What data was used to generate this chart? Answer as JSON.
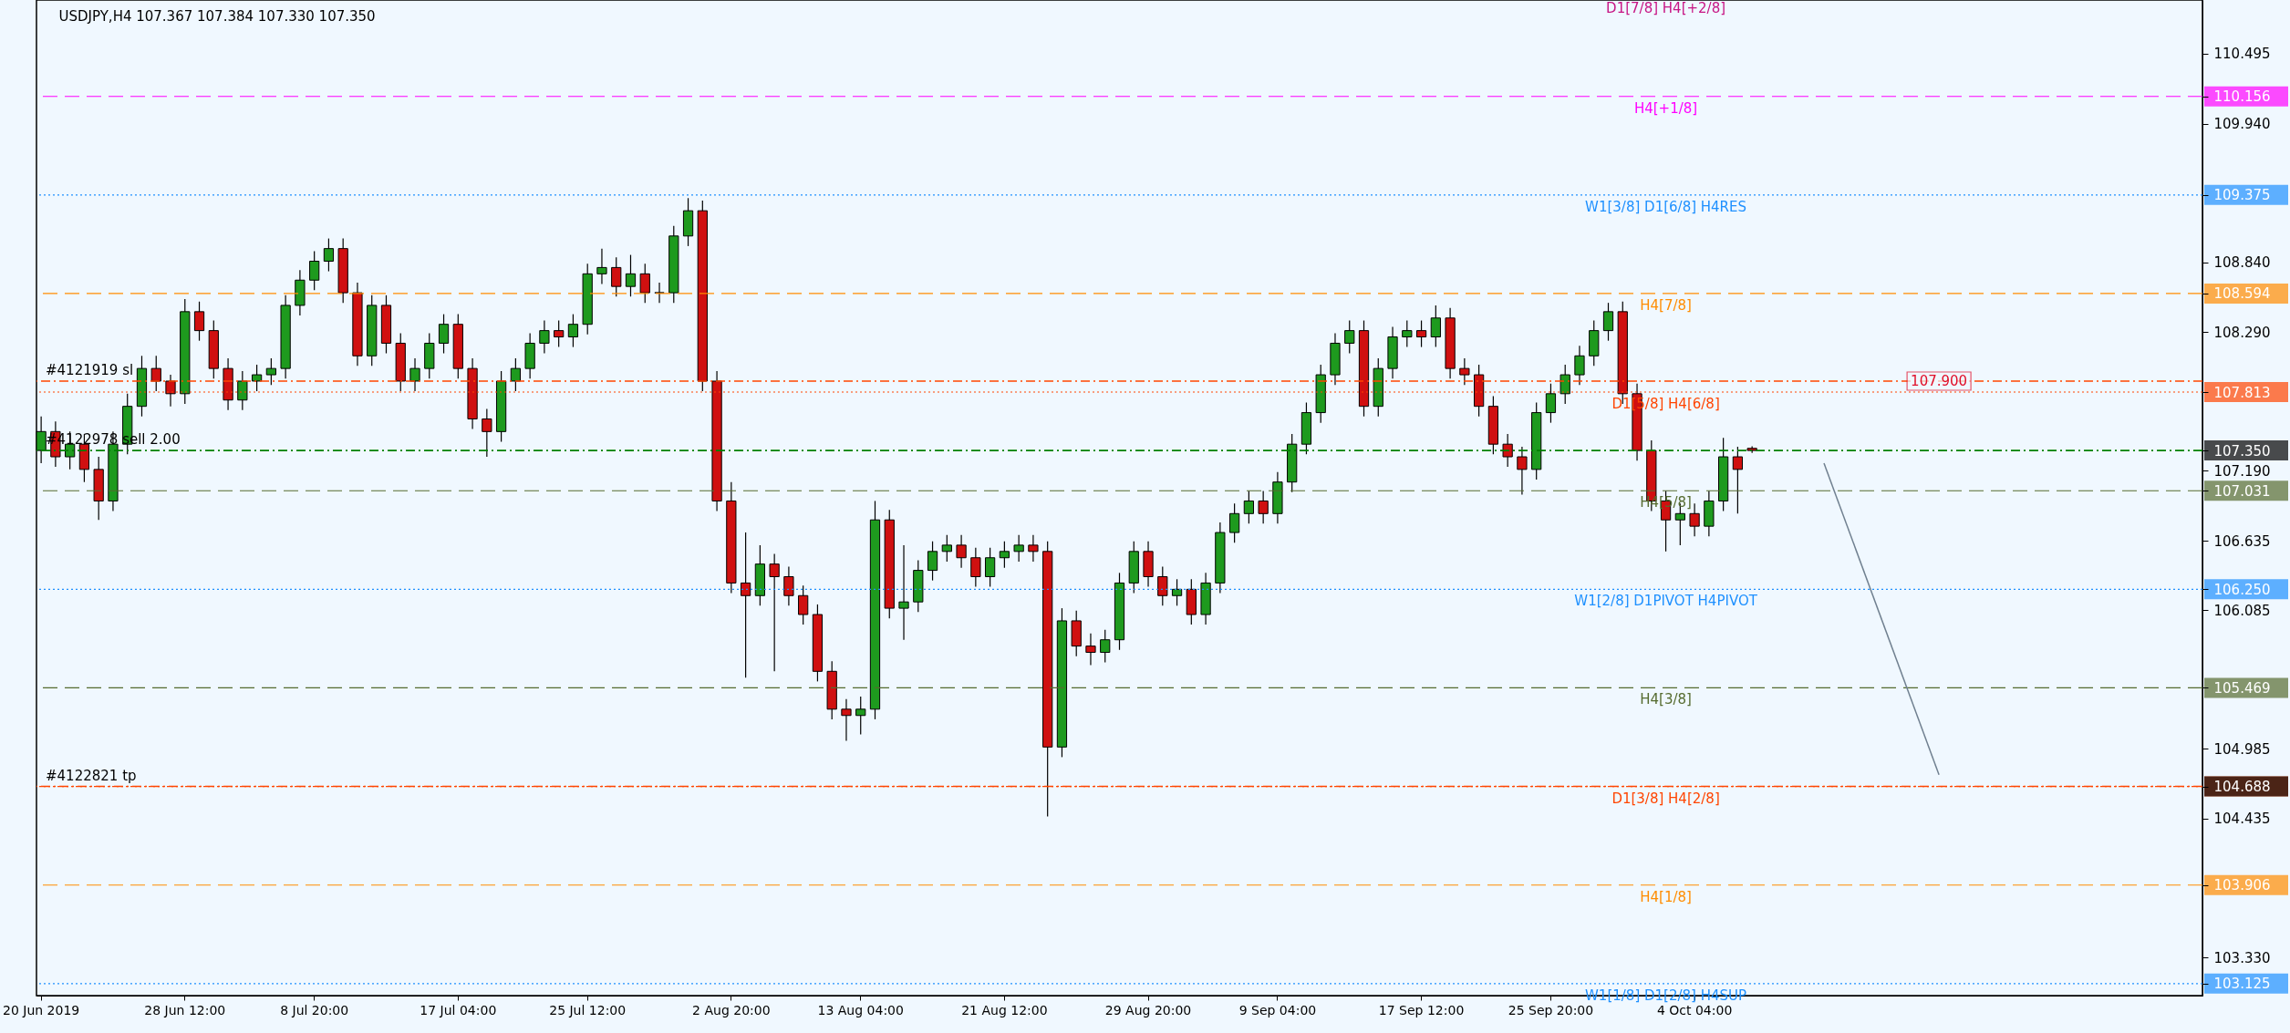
{
  "chart_data": {
    "type": "candlestick",
    "title": "USDJPY,H4  107.367 107.384 107.330 107.350",
    "categories": [
      "20 Jun 2019",
      null,
      null,
      null,
      null,
      null,
      null,
      null,
      null,
      null,
      "28 Jun 12:00",
      null,
      null,
      null,
      null,
      null,
      null,
      null,
      null,
      "8 Jul 20:00",
      null,
      null,
      null,
      null,
      null,
      null,
      null,
      null,
      null,
      "17 Jul 04:00",
      null,
      null,
      null,
      null,
      null,
      null,
      null,
      null,
      "25 Jul 12:00",
      null,
      null,
      null,
      null,
      null,
      null,
      null,
      null,
      null,
      "2 Aug 20:00",
      null,
      null,
      null,
      null,
      null,
      null,
      null,
      null,
      "13 Aug 04:00",
      null,
      null,
      null,
      null,
      null,
      null,
      null,
      null,
      null,
      "21 Aug 12:00",
      null,
      null,
      null,
      null,
      null,
      null,
      null,
      null,
      null,
      "29 Aug 20:00",
      null,
      null,
      null,
      null,
      null,
      null,
      null,
      null,
      "9 Sep 04:00",
      null,
      null,
      null,
      null,
      null,
      null,
      null,
      null,
      null,
      "17 Sep 12:00",
      null,
      null,
      null,
      null,
      null,
      null,
      null,
      null,
      "25 Sep 20:00",
      null,
      null,
      null,
      null,
      null,
      null,
      null,
      null,
      null,
      "4 Oct 04:00",
      null,
      null,
      null,
      null,
      null,
      null,
      null,
      null,
      null,
      null,
      null,
      null,
      null,
      null,
      null,
      null,
      null,
      null,
      null,
      null,
      null,
      null,
      null,
      null,
      null,
      null,
      null,
      null,
      null,
      null,
      null,
      null,
      null,
      null,
      null
    ],
    "ohlc": [
      [
        107.35,
        107.62,
        107.25,
        107.5
      ],
      [
        107.5,
        107.58,
        107.22,
        107.3
      ],
      [
        107.3,
        107.5,
        107.2,
        107.4
      ],
      [
        107.4,
        107.48,
        107.1,
        107.2
      ],
      [
        107.2,
        107.3,
        106.8,
        106.95
      ],
      [
        106.95,
        107.5,
        106.87,
        107.4
      ],
      [
        107.4,
        107.8,
        107.32,
        107.7
      ],
      [
        107.7,
        108.1,
        107.62,
        108.0
      ],
      [
        108.0,
        108.1,
        107.82,
        107.9
      ],
      [
        107.9,
        107.95,
        107.7,
        107.8
      ],
      [
        107.8,
        108.55,
        107.72,
        108.45
      ],
      [
        108.45,
        108.53,
        108.22,
        108.3
      ],
      [
        108.3,
        108.38,
        107.92,
        108.0
      ],
      [
        108.0,
        108.08,
        107.67,
        107.75
      ],
      [
        107.75,
        107.98,
        107.67,
        107.9
      ],
      [
        107.9,
        108.03,
        107.82,
        107.95
      ],
      [
        107.95,
        108.08,
        107.87,
        108.0
      ],
      [
        108.0,
        108.58,
        107.92,
        108.5
      ],
      [
        108.5,
        108.78,
        108.42,
        108.7
      ],
      [
        108.7,
        108.93,
        108.62,
        108.85
      ],
      [
        108.85,
        109.03,
        108.77,
        108.95
      ],
      [
        108.95,
        109.03,
        108.52,
        108.6
      ],
      [
        108.6,
        108.68,
        108.02,
        108.1
      ],
      [
        108.1,
        108.58,
        108.02,
        108.5
      ],
      [
        108.5,
        108.58,
        108.12,
        108.2
      ],
      [
        108.2,
        108.28,
        107.82,
        107.9
      ],
      [
        107.9,
        108.08,
        107.82,
        108.0
      ],
      [
        108.0,
        108.28,
        107.92,
        108.2
      ],
      [
        108.2,
        108.43,
        108.12,
        108.35
      ],
      [
        108.35,
        108.43,
        107.92,
        108.0
      ],
      [
        108.0,
        108.08,
        107.52,
        107.6
      ],
      [
        107.6,
        107.68,
        107.3,
        107.5
      ],
      [
        107.5,
        107.98,
        107.42,
        107.9
      ],
      [
        107.9,
        108.08,
        107.82,
        108.0
      ],
      [
        108.0,
        108.28,
        107.92,
        108.2
      ],
      [
        108.2,
        108.38,
        108.12,
        108.3
      ],
      [
        108.3,
        108.38,
        108.17,
        108.25
      ],
      [
        108.25,
        108.43,
        108.17,
        108.35
      ],
      [
        108.35,
        108.83,
        108.27,
        108.75
      ],
      [
        108.75,
        108.95,
        108.67,
        108.8
      ],
      [
        108.8,
        108.88,
        108.57,
        108.65
      ],
      [
        108.65,
        108.9,
        108.57,
        108.75
      ],
      [
        108.75,
        108.83,
        108.52,
        108.6
      ],
      [
        108.6,
        108.68,
        108.52,
        108.6
      ],
      [
        108.6,
        109.13,
        108.52,
        109.05
      ],
      [
        109.05,
        109.35,
        108.97,
        109.25
      ],
      [
        109.25,
        109.33,
        107.82,
        107.9
      ],
      [
        107.9,
        107.98,
        106.87,
        106.95
      ],
      [
        106.95,
        107.1,
        106.22,
        106.3
      ],
      [
        106.3,
        106.7,
        105.55,
        106.2
      ],
      [
        106.2,
        106.6,
        106.12,
        106.45
      ],
      [
        106.45,
        106.53,
        105.6,
        106.35
      ],
      [
        106.35,
        106.43,
        106.12,
        106.2
      ],
      [
        106.2,
        106.28,
        105.97,
        106.05
      ],
      [
        106.05,
        106.13,
        105.52,
        105.6
      ],
      [
        105.6,
        105.68,
        105.22,
        105.3
      ],
      [
        105.3,
        105.38,
        105.05,
        105.25
      ],
      [
        105.25,
        105.4,
        105.1,
        105.3
      ],
      [
        105.3,
        106.95,
        105.22,
        106.8
      ],
      [
        106.8,
        106.88,
        106.02,
        106.1
      ],
      [
        106.1,
        106.6,
        105.85,
        106.15
      ],
      [
        106.15,
        106.48,
        106.07,
        106.4
      ],
      [
        106.4,
        106.63,
        106.32,
        106.55
      ],
      [
        106.55,
        106.68,
        106.47,
        106.6
      ],
      [
        106.6,
        106.68,
        106.42,
        106.5
      ],
      [
        106.5,
        106.58,
        106.27,
        106.35
      ],
      [
        106.35,
        106.58,
        106.27,
        106.5
      ],
      [
        106.5,
        106.63,
        106.42,
        106.55
      ],
      [
        106.55,
        106.68,
        106.47,
        106.6
      ],
      [
        106.6,
        106.68,
        106.47,
        106.55
      ],
      [
        106.55,
        106.63,
        104.45,
        105.0
      ],
      [
        105.0,
        106.1,
        104.92,
        106.0
      ],
      [
        106.0,
        106.08,
        105.72,
        105.8
      ],
      [
        105.8,
        105.9,
        105.65,
        105.75
      ],
      [
        105.75,
        105.93,
        105.67,
        105.85
      ],
      [
        105.85,
        106.38,
        105.77,
        106.3
      ],
      [
        106.3,
        106.63,
        106.22,
        106.55
      ],
      [
        106.55,
        106.63,
        106.27,
        106.35
      ],
      [
        106.35,
        106.43,
        106.12,
        106.2
      ],
      [
        106.2,
        106.33,
        106.12,
        106.25
      ],
      [
        106.25,
        106.33,
        105.97,
        106.05
      ],
      [
        106.05,
        106.38,
        105.97,
        106.3
      ],
      [
        106.3,
        106.78,
        106.22,
        106.7
      ],
      [
        106.7,
        106.93,
        106.62,
        106.85
      ],
      [
        106.85,
        107.03,
        106.77,
        106.95
      ],
      [
        106.95,
        107.03,
        106.77,
        106.85
      ],
      [
        106.85,
        107.18,
        106.77,
        107.1
      ],
      [
        107.1,
        107.48,
        107.02,
        107.4
      ],
      [
        107.4,
        107.73,
        107.32,
        107.65
      ],
      [
        107.65,
        108.03,
        107.57,
        107.95
      ],
      [
        107.95,
        108.28,
        107.87,
        108.2
      ],
      [
        108.2,
        108.38,
        108.12,
        108.3
      ],
      [
        108.3,
        108.38,
        107.62,
        107.7
      ],
      [
        107.7,
        108.08,
        107.62,
        108.0
      ],
      [
        108.0,
        108.33,
        107.92,
        108.25
      ],
      [
        108.25,
        108.38,
        108.17,
        108.3
      ],
      [
        108.3,
        108.38,
        108.17,
        108.25
      ],
      [
        108.25,
        108.5,
        108.17,
        108.4
      ],
      [
        108.4,
        108.48,
        107.92,
        108.0
      ],
      [
        108.0,
        108.08,
        107.87,
        107.95
      ],
      [
        107.95,
        108.03,
        107.62,
        107.7
      ],
      [
        107.7,
        107.78,
        107.32,
        107.4
      ],
      [
        107.4,
        107.48,
        107.22,
        107.3
      ],
      [
        107.3,
        107.38,
        107.0,
        107.2
      ],
      [
        107.2,
        107.73,
        107.12,
        107.65
      ],
      [
        107.65,
        107.88,
        107.57,
        107.8
      ],
      [
        107.8,
        108.03,
        107.72,
        107.95
      ],
      [
        107.95,
        108.18,
        107.87,
        108.1
      ],
      [
        108.1,
        108.38,
        108.02,
        108.3
      ],
      [
        108.3,
        108.52,
        108.22,
        108.45
      ],
      [
        108.45,
        108.53,
        107.72,
        107.8
      ],
      [
        107.8,
        107.88,
        107.27,
        107.35
      ],
      [
        107.35,
        107.43,
        106.87,
        106.95
      ],
      [
        106.95,
        107.03,
        106.55,
        106.8
      ],
      [
        106.8,
        106.93,
        106.6,
        106.85
      ],
      [
        106.85,
        106.93,
        106.67,
        106.75
      ],
      [
        106.75,
        107.03,
        106.67,
        106.95
      ],
      [
        106.95,
        107.45,
        106.87,
        107.3
      ],
      [
        107.3,
        107.38,
        106.85,
        107.2
      ],
      [
        107.367,
        107.384,
        107.33,
        107.35
      ],
      null,
      null,
      null,
      null,
      null,
      null,
      null,
      null,
      null,
      null,
      null,
      null,
      null,
      null,
      null,
      null,
      null,
      null,
      null,
      null,
      null,
      null,
      null,
      null,
      null,
      null,
      null,
      null,
      null,
      null,
      null
    ],
    "series": [
      {
        "type": "line",
        "color": "#708090",
        "values": [
          null,
          null,
          null,
          null,
          null,
          null,
          null,
          null,
          null,
          null,
          null,
          null,
          null,
          null,
          null,
          null,
          null,
          null,
          null,
          null,
          null,
          null,
          null,
          null,
          null,
          null,
          null,
          null,
          null,
          null,
          null,
          null,
          null,
          null,
          null,
          null,
          null,
          null,
          null,
          null,
          null,
          null,
          null,
          null,
          null,
          null,
          null,
          null,
          null,
          null,
          null,
          null,
          null,
          null,
          null,
          null,
          null,
          null,
          null,
          null,
          null,
          null,
          null,
          null,
          null,
          null,
          null,
          null,
          null,
          null,
          null,
          null,
          null,
          null,
          null,
          null,
          null,
          null,
          null,
          null,
          null,
          null,
          null,
          null,
          null,
          null,
          null,
          null,
          null,
          null,
          null,
          null,
          null,
          null,
          null,
          null,
          null,
          null,
          null,
          null,
          null,
          null,
          null,
          null,
          null,
          null,
          null,
          null,
          null,
          null,
          null,
          null,
          null,
          null,
          null,
          null,
          null,
          null,
          null,
          null,
          null,
          null,
          null,
          null,
          107.25,
          null,
          null,
          null,
          null,
          null,
          null,
          null,
          104.78,
          null,
          null,
          null,
          null,
          null,
          null,
          null,
          null,
          null,
          null,
          null,
          null,
          null,
          null,
          null,
          null,
          null,
          null
        ]
      }
    ],
    "ylim": [
      103.03,
      110.92
    ],
    "yticks": [
      110.495,
      {
        "value": 110.156,
        "label": "110.156"
      },
      {
        "value": 109.94,
        "label": "109.940"
      },
      {
        "value": 109.375,
        "label": "109.375"
      },
      {
        "value": 108.84,
        "label": "108.840"
      },
      {
        "value": 108.594,
        "label": "108.594"
      },
      {
        "value": 108.29,
        "label": "108.290"
      },
      {
        "value": 107.813,
        "label": "107.813"
      },
      {
        "value": 107.35,
        "label": "107.350"
      },
      {
        "value": 107.19,
        "label": "107.190"
      },
      {
        "value": 107.031,
        "label": "107.031"
      },
      106.635,
      {
        "value": 106.25,
        "label": "106.250"
      },
      106.085,
      {
        "value": 105.469,
        "label": "105.469"
      },
      104.985,
      {
        "value": 104.688,
        "label": "104.688"
      },
      104.435,
      {
        "value": 103.906,
        "label": "103.906"
      },
      {
        "value": 103.33,
        "label": "103.330"
      },
      {
        "value": 103.125,
        "label": "103.125"
      }
    ],
    "ref_lines": [
      {
        "axis": "y",
        "value": 110.156,
        "label": "H4[+1/8]",
        "color": "#ff00ff",
        "line_style": "dashed"
      },
      {
        "axis": "y",
        "value": 109.375,
        "label": "W1[3/8] D1[6/8] H4RES",
        "color": "#1e90ff",
        "line_style": "dotted"
      },
      {
        "axis": "y",
        "value": 108.594,
        "label": "H4[7/8]",
        "color": "#ff8c00",
        "line_style": "dashed"
      },
      {
        "axis": "y",
        "value": 107.9,
        "label": "#4121919 sl",
        "color": "#ff4500",
        "line_style": "dashdot"
      },
      {
        "axis": "y",
        "value": 107.813,
        "label": "D1[5/8] H4[6/8]",
        "color": "#ff4500",
        "line_style": "dotted"
      },
      {
        "axis": "y",
        "value": 107.35,
        "label": "#4122978 sell 2.00",
        "color": "#008000",
        "line_style": "dashdot"
      },
      {
        "axis": "y",
        "value": 107.031,
        "label": "H4[5/8]",
        "color": "#556b2f",
        "line_style": "dashed"
      },
      {
        "axis": "y",
        "value": 106.25,
        "label": "W1[2/8] D1PIVOT H4PIVOT",
        "color": "#1e90ff",
        "line_style": "dotted"
      },
      {
        "axis": "y",
        "value": 105.469,
        "label": "H4[3/8]",
        "color": "#556b2f",
        "line_style": "dashed"
      },
      {
        "axis": "y",
        "value": 104.688,
        "label": "D1[3/8] H4[2/8]",
        "color": "#ff4500",
        "line_style": "dotted"
      },
      {
        "axis": "y",
        "value": 104.688,
        "label": "#4122821 tp",
        "color": "#ff4500",
        "line_style": "dashdot"
      },
      {
        "axis": "y",
        "value": 103.906,
        "label": "H4[1/8]",
        "color": "#ff8c00",
        "line_style": "dashed"
      },
      {
        "axis": "y",
        "value": 103.125,
        "label": "W1[1/8] D1[2/8] H4SUP",
        "color": "#1e90ff",
        "line_style": "dotted"
      }
    ],
    "annotations": [
      "D1[7/8] H4[+2/8]",
      {
        "text": "107.900",
        "y": 107.9
      }
    ],
    "grid": false
  }
}
